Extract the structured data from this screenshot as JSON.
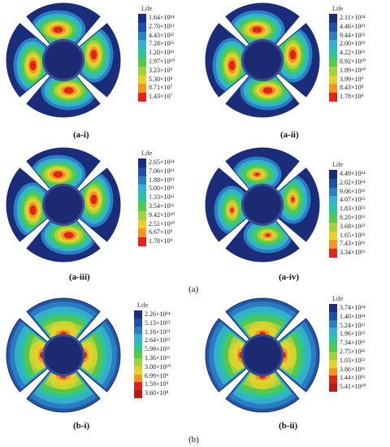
{
  "legend_title": "Life",
  "captions": {
    "a_i": "(a-i)",
    "a_ii": "(a-ii)",
    "a_iii": "(a-iii)",
    "a_iv": "(a-iv)",
    "a": "(a)",
    "b_i": "(b-i)",
    "b_ii": "(b-ii)",
    "b": "(b)"
  },
  "scales": {
    "a_i": [
      "1.64×10¹⁴",
      "2.70×10¹³",
      "4.43×10¹²",
      "7.28×10¹¹",
      "1.20×10¹¹",
      "1.97×10¹⁰",
      "3.23×10⁹",
      "5.30×10⁸",
      "8.71×10⁷",
      "1.43×10⁷"
    ],
    "a_ii": [
      "2.11×10¹⁴",
      "4.46×10¹³",
      "9.44×10¹²",
      "2.00×10¹²",
      "4.22×10¹¹",
      "8.92×10¹⁰",
      "1.89×10¹⁰",
      "3.99×10⁹",
      "8.43×10⁸",
      "1.78×10⁸"
    ],
    "a_iii": [
      "2.65×10¹⁴",
      "7.06×10¹³",
      "1.88×10¹³",
      "5.00×10¹²",
      "1.33×10¹²",
      "3.54×10¹¹",
      "9.42×10¹⁰",
      "2.51×10¹⁰",
      "6.67×10⁹",
      "1.78×10⁹"
    ],
    "a_iv": [
      "4.49×10¹⁴",
      "2.02×10¹⁴",
      "9.06×10¹³",
      "4.07×10¹³",
      "1.83×10¹³",
      "8.20×10¹²",
      "3.68×10¹²",
      "1.65×10¹²",
      "7.43×10¹¹",
      "3.34×10¹¹"
    ],
    "b_i": [
      "2.26×10¹⁴",
      "5.13×10¹³",
      "1.16×10¹³",
      "2.64×10¹²",
      "5.99×10¹¹",
      "1.36×10¹¹",
      "3.08×10¹⁰",
      "6.99×10⁹",
      "1.59×10⁹",
      "3.60×10⁸"
    ],
    "b_ii": [
      "3.74×10¹⁴",
      "1.40×10¹⁴",
      "5.24×10¹³",
      "1.96×10¹³",
      "7.34×10¹²",
      "2.75×10¹²",
      "1.03×10¹²",
      "3.86×10¹¹",
      "1.44×10¹¹",
      "5.41×10¹⁰"
    ]
  },
  "colors": {
    "ramp_a": [
      "#1b2d7a",
      "#1f4fa8",
      "#2a7fc4",
      "#35b0cf",
      "#2fc49a",
      "#56c84a",
      "#a3d33c",
      "#e8d12a",
      "#f49422",
      "#e0241c"
    ],
    "ramp_b": [
      "#1b2d7a",
      "#1f4fa8",
      "#2a7fc4",
      "#35b0cf",
      "#2fc49a",
      "#56c84a",
      "#a3d33c",
      "#e8d12a",
      "#f49422",
      "#e0241c",
      "#b81a1a"
    ],
    "hub": "#1c2a72",
    "hub_rim": "#3a4a9a",
    "blade_edge": "#1b2d7a"
  }
}
